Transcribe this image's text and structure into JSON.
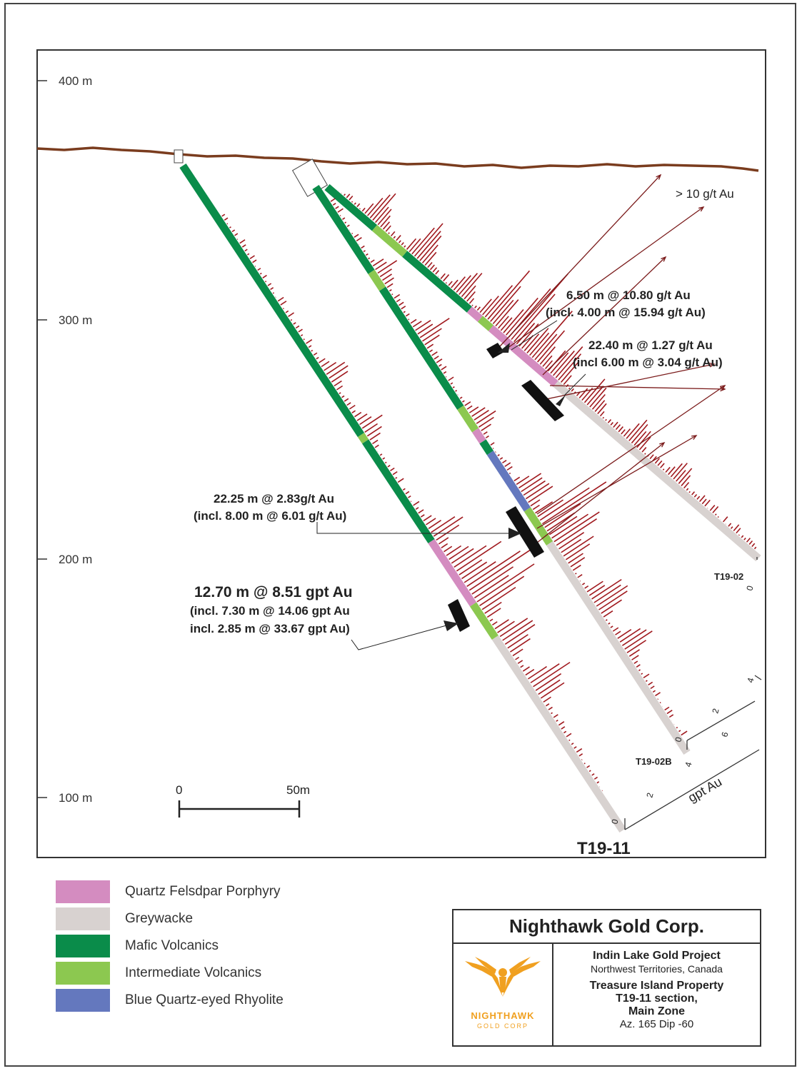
{
  "depth_axis": {
    "labels": [
      "400 m",
      "300 m",
      "200 m",
      "100 m"
    ]
  },
  "scale_bar": {
    "start": "0",
    "end": "50m"
  },
  "annotations": {
    "high_grade": "> 10 g/t Au",
    "int1_line1": "6.50 m @ 10.80 g/t Au",
    "int1_line2": "(incl. 4.00 m @ 15.94 g/t Au)",
    "int2_line1": "22.40 m @ 1.27 g/t Au",
    "int2_line2": "(incl  6.00 m @ 3.04 g/t Au)",
    "int3_line1": "22.25 m @ 2.83g/t Au",
    "int3_line2": "(incl. 8.00 m @ 6.01 g/t Au)",
    "int4_line1": "12.70 m @ 8.51 gpt Au",
    "int4_line2": "(incl. 7.30 m @ 14.06 gpt Au",
    "int4_line3": "incl. 2.85 m @ 33.67 gpt Au)"
  },
  "holes": {
    "h1": "T19-02",
    "h2": "T19-02B",
    "h3": "T19-11"
  },
  "grade_axis": {
    "unit": "gpt Au",
    "ticks": [
      "0",
      "2",
      "4",
      "6"
    ]
  },
  "legend": [
    {
      "label": "Quartz Felsdpar Porphyry",
      "color": "#d48cc0"
    },
    {
      "label": "Greywacke",
      "color": "#d8d2d0"
    },
    {
      "label": "Mafic Volcanics",
      "color": "#0a8c4a"
    },
    {
      "label": "Intermediate Volcanics",
      "color": "#8cc850"
    },
    {
      "label": "Blue Quartz-eyed Rhyolite",
      "color": "#6478be"
    }
  ],
  "titleblock": {
    "company": "Nighthawk Gold Corp.",
    "project": "Indin Lake Gold Project",
    "location": "Northwest Territories, Canada",
    "property1": "Treasure Island Property",
    "property2": "T19-11 section,",
    "property3": "Main Zone",
    "az_dip": "Az. 165  Dip  -60",
    "logo_word": "NIGHTHAWK",
    "logo_sub": "GOLD CORP"
  },
  "colors": {
    "topography": "#7a3c1e",
    "assay": "#a0191e",
    "intercept": "#111111",
    "logo": "#f0a020"
  }
}
